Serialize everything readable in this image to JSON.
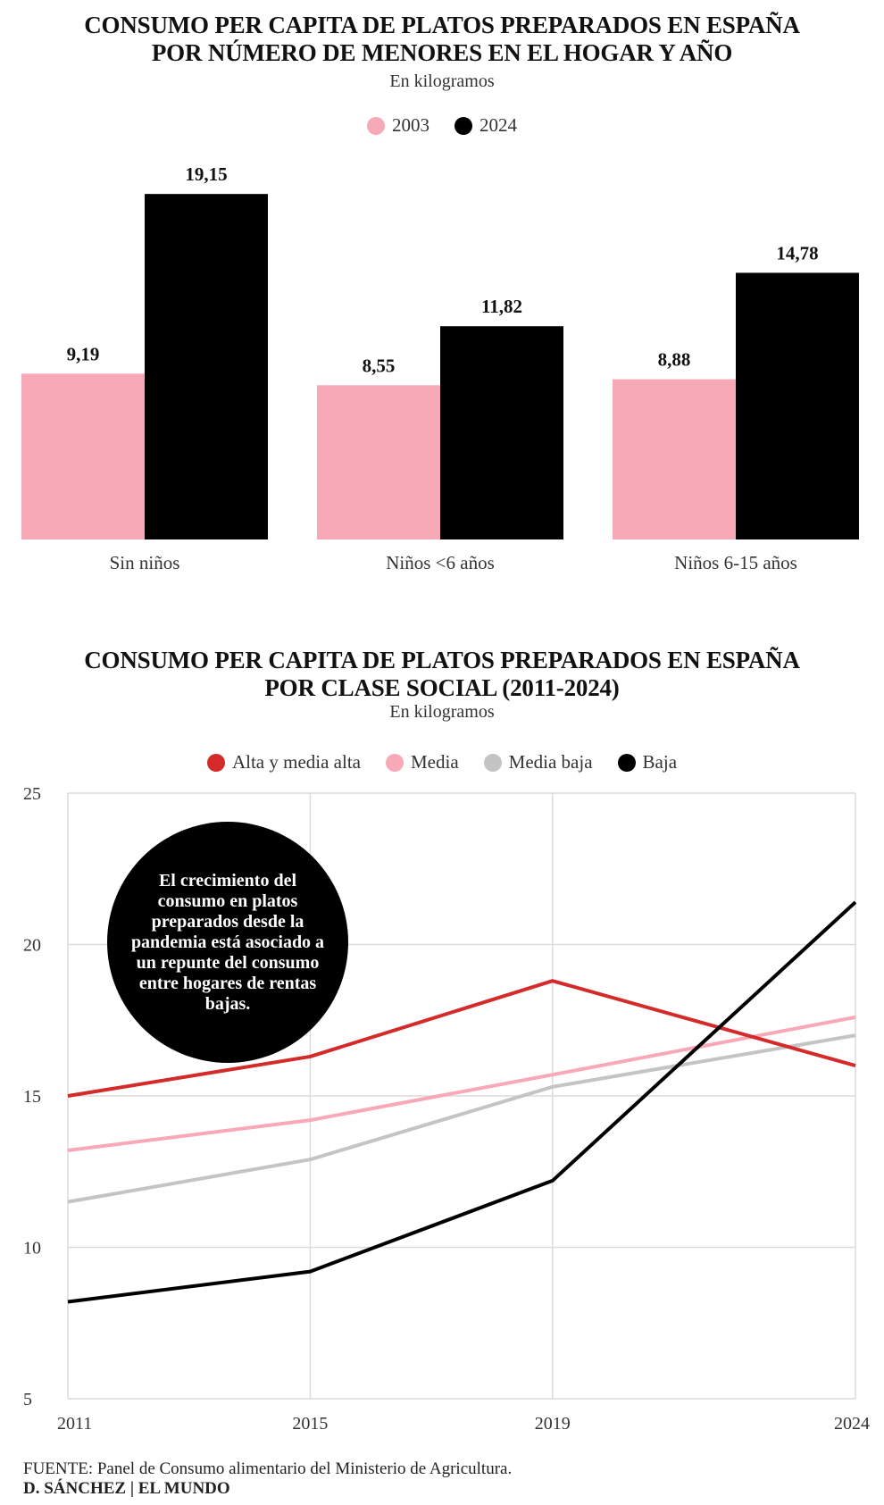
{
  "chart_data": [
    {
      "type": "bar",
      "title": "CONSUMO PER CAPITA DE PLATOS PREPARADOS EN ESPAÑA\nPOR NÚMERO DE MENORES EN EL HOGAR Y AÑO",
      "subtitle": "En kilogramos",
      "categories": [
        "Sin niños",
        "Niños <6 años",
        "Niños 6-15 años"
      ],
      "series": [
        {
          "name": "2003",
          "values": [
            9.19,
            8.55,
            8.88
          ],
          "labels": [
            "9,19",
            "8,55",
            "8,88"
          ],
          "color": "#f7a9b8"
        },
        {
          "name": "2024",
          "values": [
            19.15,
            11.82,
            14.78
          ],
          "labels": [
            "19,15",
            "11,82",
            "14,78"
          ],
          "color": "#000000"
        }
      ],
      "legend_position": "top-center",
      "ylim": [
        0,
        20
      ],
      "grid": false
    },
    {
      "type": "line",
      "title": "CONSUMO PER CAPITA DE PLATOS PREPARADOS EN ESPAÑA\nPOR CLASE SOCIAL (2011-2024)",
      "subtitle": "En kilogramos",
      "x": [
        2011,
        2015,
        2019,
        2024
      ],
      "x_tick_labels": [
        "2011",
        "2015",
        "2019",
        "2024"
      ],
      "y_tick_labels": [
        "25",
        "20",
        "15",
        "10",
        "5"
      ],
      "ylim": [
        5,
        25
      ],
      "grid": true,
      "legend_position": "top-center",
      "series": [
        {
          "name": "Alta y media alta",
          "values": [
            15.0,
            16.3,
            18.8,
            16.0
          ],
          "color": "#d42a2a"
        },
        {
          "name": "Media",
          "values": [
            13.2,
            14.2,
            15.7,
            17.6
          ],
          "color": "#f7a9b8"
        },
        {
          "name": "Media baja",
          "values": [
            11.5,
            12.9,
            15.3,
            17.0
          ],
          "color": "#c4c4c4"
        },
        {
          "name": "Baja",
          "values": [
            8.2,
            9.2,
            12.2,
            21.4
          ],
          "color": "#000000"
        }
      ],
      "annotation": "El crecimiento del consumo en platos preparados desde la pandemia está asociado a un repunte del consumo entre hogares de rentas bajas."
    }
  ],
  "footer": {
    "source_label": "FUENTE:",
    "source_text": " Panel de Consumo alimentario del Ministerio de Agricultura.",
    "credit": "D. SÁNCHEZ | EL MUNDO"
  }
}
